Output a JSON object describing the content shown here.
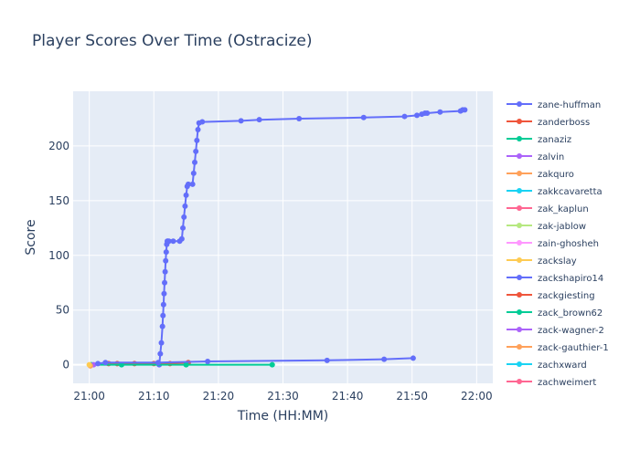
{
  "chart_data": {
    "type": "line",
    "title": "Player Scores Over Time (Ostracize)",
    "xlabel": "Time (HH:MM)",
    "ylabel": "Score",
    "x_unit": "time HH:MM",
    "xlim": [
      "20:57:30",
      "22:02:30"
    ],
    "ylim": [
      -17,
      250
    ],
    "x_ticks": [
      "21:00",
      "21:10",
      "21:20",
      "21:30",
      "21:40",
      "21:50",
      "22:00"
    ],
    "y_ticks": [
      0,
      50,
      100,
      150,
      200
    ],
    "grid": true,
    "legend_position": "right",
    "series": [
      {
        "name": "zane-huffman",
        "color": "#636efa",
        "x": [
          "21:10:50",
          "21:11:00",
          "21:11:10",
          "21:11:20",
          "21:11:25",
          "21:11:30",
          "21:11:35",
          "21:11:40",
          "21:11:45",
          "21:11:50",
          "21:11:55",
          "21:12:00",
          "21:12:05",
          "21:12:10",
          "21:12:20",
          "21:13:00",
          "21:14:00",
          "21:14:20",
          "21:14:30",
          "21:14:40",
          "21:14:50",
          "21:15:00",
          "21:15:10",
          "21:15:20",
          "21:16:00",
          "21:16:10",
          "21:16:20",
          "21:16:30",
          "21:16:40",
          "21:16:50",
          "21:17:00",
          "21:17:30",
          "21:23:30",
          "21:26:20",
          "21:32:30",
          "21:42:30",
          "21:48:50",
          "21:50:45",
          "21:51:30",
          "21:52:00",
          "21:52:20",
          "21:54:20",
          "21:57:30",
          "21:57:50",
          "21:58:10"
        ],
        "y": [
          0,
          10,
          20,
          35,
          45,
          55,
          65,
          75,
          85,
          95,
          103,
          110,
          113,
          113,
          113,
          113,
          113,
          115,
          125,
          135,
          145,
          155,
          163,
          165,
          165,
          175,
          185,
          195,
          205,
          215,
          221,
          222,
          223,
          224,
          225,
          226,
          227,
          228,
          229,
          230,
          230,
          231,
          232,
          233,
          233
        ]
      },
      {
        "name": "zanderboss",
        "color": "#ef553b",
        "x": [
          "21:03:00",
          "21:04:20",
          "21:07:00",
          "21:10:00",
          "21:12:30",
          "21:15:20"
        ],
        "y": [
          1,
          1,
          1,
          1,
          1,
          2
        ]
      },
      {
        "name": "zanaziz",
        "color": "#00cc96",
        "x": [
          "21:00:20",
          "21:05:00",
          "21:15:00",
          "21:28:20"
        ],
        "y": [
          0,
          0,
          0,
          0
        ]
      },
      {
        "name": "zalvin",
        "color": "#ab63fa",
        "x": [
          "21:00:40"
        ],
        "y": [
          0
        ]
      },
      {
        "name": "zakquro",
        "color": "#ffa15a",
        "x": [
          "21:00:10"
        ],
        "y": [
          -1
        ]
      },
      {
        "name": "zakkcavaretta",
        "color": "#19d3f3",
        "x": [],
        "y": []
      },
      {
        "name": "zak_kaplun",
        "color": "#ff6692",
        "x": [],
        "y": []
      },
      {
        "name": "zak-jablow",
        "color": "#b6e880",
        "x": [],
        "y": []
      },
      {
        "name": "zain-ghosheh",
        "color": "#ff97ff",
        "x": [],
        "y": []
      },
      {
        "name": "zackslay",
        "color": "#fecb52",
        "x": [
          "21:00:00"
        ],
        "y": [
          0
        ]
      },
      {
        "name": "zackshapiro14",
        "color": "#636efa",
        "x": [
          "21:01:20",
          "21:02:30",
          "21:10:40",
          "21:18:20",
          "21:36:50",
          "21:45:40",
          "21:50:10"
        ],
        "y": [
          1,
          2,
          2,
          3,
          4,
          5,
          6
        ]
      },
      {
        "name": "zackgiesting",
        "color": "#ef553b",
        "x": [],
        "y": []
      },
      {
        "name": "zack_brown62",
        "color": "#00cc96",
        "x": [],
        "y": []
      },
      {
        "name": "zack-wagner-2",
        "color": "#ab63fa",
        "x": [],
        "y": []
      },
      {
        "name": "zack-gauthier-1",
        "color": "#ffa15a",
        "x": [],
        "y": []
      },
      {
        "name": "zachxward",
        "color": "#19d3f3",
        "x": [],
        "y": []
      },
      {
        "name": "zachweimert",
        "color": "#ff6692",
        "x": [],
        "y": []
      }
    ]
  }
}
